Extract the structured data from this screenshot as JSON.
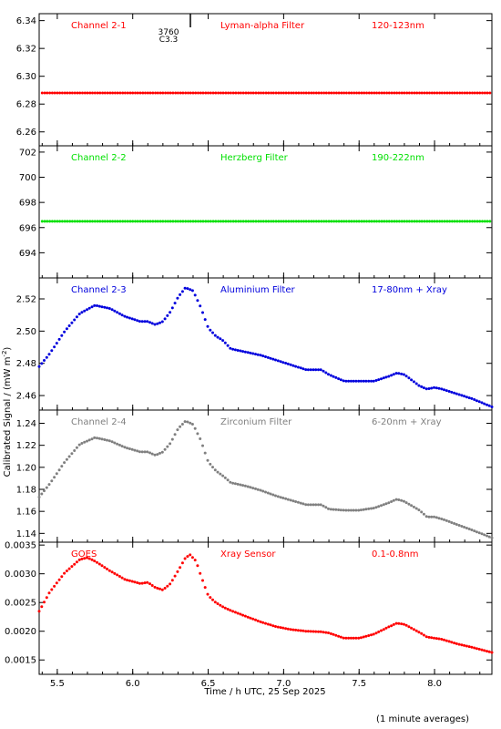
{
  "figure": {
    "ylabel": "Calibrated Signal / (mW m",
    "ylabel_sup": "-2",
    "ylabel_close": ")",
    "xlabel": "Time / h UTC, 25 Sep 2025",
    "footnote": "(1 minute averages)",
    "top_annotation": "3760",
    "top_annotation_2": "C3.3"
  },
  "chart_data": [
    {
      "type": "scatter",
      "channel": "Channel 2-1",
      "filter": "Lyman-alpha Filter",
      "band": "120-123nm",
      "color": "#ff0000",
      "xlim": [
        5.38,
        8.38
      ],
      "ylim": [
        6.25,
        6.345
      ],
      "yticks": [
        "6.26",
        "6.28",
        "6.30",
        "6.32",
        "6.34"
      ],
      "x": [
        5.4,
        6.0,
        7.0,
        8.0,
        8.38
      ],
      "y": [
        6.288,
        6.288,
        6.288,
        6.288,
        6.288
      ]
    },
    {
      "type": "scatter",
      "channel": "Channel 2-2",
      "filter": "Herzberg Filter",
      "band": "190-222nm",
      "color": "#00e000",
      "xlim": [
        5.38,
        8.38
      ],
      "ylim": [
        692.0,
        702.5
      ],
      "yticks": [
        "694",
        "696",
        "698",
        "700",
        "702"
      ],
      "x": [
        5.4,
        6.0,
        7.0,
        8.0,
        8.38
      ],
      "y": [
        696.5,
        696.5,
        696.5,
        696.5,
        696.5
      ]
    },
    {
      "type": "scatter",
      "channel": "Channel 2-3",
      "filter": "Aluminium Filter",
      "band": "17-80nm + Xray",
      "color": "#0000dd",
      "xlim": [
        5.38,
        8.38
      ],
      "ylim": [
        2.451,
        2.533
      ],
      "yticks": [
        "2.46",
        "2.48",
        "2.50",
        "2.52"
      ],
      "x": [
        5.38,
        5.45,
        5.55,
        5.65,
        5.75,
        5.85,
        5.95,
        6.05,
        6.1,
        6.15,
        6.2,
        6.25,
        6.3,
        6.35,
        6.4,
        6.45,
        6.5,
        6.55,
        6.6,
        6.65,
        6.75,
        6.85,
        6.95,
        7.05,
        7.15,
        7.25,
        7.3,
        7.4,
        7.5,
        7.6,
        7.7,
        7.75,
        7.8,
        7.9,
        7.95,
        8.0,
        8.05,
        8.15,
        8.25,
        8.38
      ],
      "y": [
        2.478,
        2.486,
        2.5,
        2.511,
        2.516,
        2.514,
        2.509,
        2.506,
        2.506,
        2.504,
        2.506,
        2.512,
        2.521,
        2.527,
        2.525,
        2.515,
        2.502,
        2.497,
        2.494,
        2.489,
        2.487,
        2.485,
        2.482,
        2.479,
        2.476,
        2.476,
        2.473,
        2.469,
        2.469,
        2.469,
        2.472,
        2.474,
        2.473,
        2.466,
        2.464,
        2.465,
        2.464,
        2.461,
        2.458,
        2.453
      ]
    },
    {
      "type": "scatter",
      "channel": "Channel 2-4",
      "filter": "Zirconium Filter",
      "band": "6-20nm + Xray",
      "color": "#808080",
      "xlim": [
        5.38,
        8.38
      ],
      "ylim": [
        1.132,
        1.252
      ],
      "yticks": [
        "1.14",
        "1.16",
        "1.18",
        "1.20",
        "1.22",
        "1.24"
      ],
      "x": [
        5.38,
        5.45,
        5.55,
        5.65,
        5.75,
        5.85,
        5.95,
        6.05,
        6.1,
        6.15,
        6.2,
        6.25,
        6.3,
        6.35,
        6.4,
        6.45,
        6.5,
        6.55,
        6.6,
        6.65,
        6.75,
        6.85,
        6.95,
        7.05,
        7.15,
        7.25,
        7.3,
        7.4,
        7.5,
        7.6,
        7.7,
        7.75,
        7.8,
        7.9,
        7.95,
        8.0,
        8.05,
        8.15,
        8.25,
        8.38
      ],
      "y": [
        1.173,
        1.185,
        1.205,
        1.221,
        1.227,
        1.224,
        1.218,
        1.214,
        1.214,
        1.211,
        1.214,
        1.222,
        1.235,
        1.242,
        1.239,
        1.225,
        1.205,
        1.197,
        1.192,
        1.186,
        1.183,
        1.179,
        1.174,
        1.17,
        1.166,
        1.166,
        1.162,
        1.161,
        1.161,
        1.163,
        1.168,
        1.171,
        1.169,
        1.161,
        1.155,
        1.155,
        1.153,
        1.148,
        1.143,
        1.136
      ]
    },
    {
      "type": "scatter",
      "channel": "GOES",
      "filter": "Xray Sensor",
      "band": "0.1-0.8nm",
      "color": "#ff0000",
      "xlim": [
        5.38,
        8.38
      ],
      "ylim": [
        0.00125,
        0.00355
      ],
      "yticks": [
        "0.0015",
        "0.0020",
        "0.0025",
        "0.0030",
        "0.0035"
      ],
      "x": [
        5.38,
        5.45,
        5.55,
        5.65,
        5.7,
        5.75,
        5.85,
        5.95,
        6.05,
        6.1,
        6.15,
        6.2,
        6.25,
        6.3,
        6.35,
        6.38,
        6.42,
        6.45,
        6.5,
        6.55,
        6.6,
        6.65,
        6.75,
        6.85,
        6.95,
        7.05,
        7.15,
        7.25,
        7.3,
        7.4,
        7.5,
        7.6,
        7.7,
        7.75,
        7.8,
        7.9,
        7.95,
        8.0,
        8.05,
        8.15,
        8.25,
        8.38
      ],
      "y": [
        0.00235,
        0.00268,
        0.00302,
        0.00325,
        0.00328,
        0.00322,
        0.00305,
        0.0029,
        0.00283,
        0.00285,
        0.00276,
        0.00272,
        0.00283,
        0.00305,
        0.00328,
        0.00333,
        0.00322,
        0.00298,
        0.00262,
        0.0025,
        0.00242,
        0.00236,
        0.00226,
        0.00216,
        0.00208,
        0.00203,
        0.002,
        0.00199,
        0.00197,
        0.00188,
        0.00188,
        0.00195,
        0.00208,
        0.00214,
        0.00212,
        0.00198,
        0.0019,
        0.00188,
        0.00186,
        0.00178,
        0.00172,
        0.00163
      ]
    }
  ],
  "xticks": [
    "5.5",
    "6.0",
    "6.5",
    "7.0",
    "7.5",
    "8.0"
  ],
  "xtick_values": [
    5.5,
    6.0,
    6.5,
    7.0,
    7.5,
    8.0
  ]
}
